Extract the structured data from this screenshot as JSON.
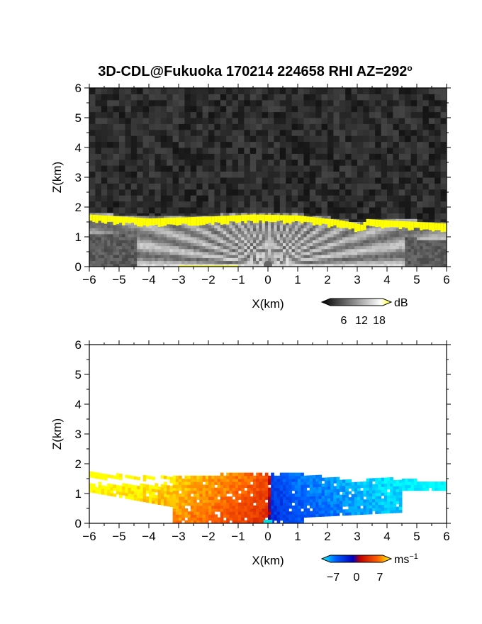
{
  "title": "3D-CDL@Fukuoka 170214 224658 RHI AZ=292",
  "title_sup": "o",
  "chart_data": [
    {
      "type": "heatmap",
      "panel": "backscatter",
      "xlabel": "X(km)",
      "ylabel": "Z(km)",
      "xlim": [
        -6,
        6
      ],
      "ylim": [
        0,
        6
      ],
      "xticks": [
        "-6",
        "-5",
        "-4",
        "-3",
        "-2",
        "-1",
        "0",
        "1",
        "2",
        "3",
        "4",
        "5",
        "6"
      ],
      "yticks": [
        "0",
        "1",
        "2",
        "3",
        "4",
        "5",
        "6"
      ],
      "colorbar": {
        "unit": "dB",
        "ticks": [
          "6",
          "12",
          "18"
        ],
        "range": [
          0,
          20
        ],
        "colors": [
          "#000000",
          "#ffffff",
          "#ffff00"
        ]
      },
      "layer_top_km": [
        {
          "x": -6,
          "z": 1.75
        },
        {
          "x": -4,
          "z": 1.62
        },
        {
          "x": -2,
          "z": 1.68
        },
        {
          "x": -0.5,
          "z": 1.75
        },
        {
          "x": 1,
          "z": 1.72
        },
        {
          "x": 2.5,
          "z": 1.55
        },
        {
          "x": 3.2,
          "z": 1.4
        },
        {
          "x": 3.3,
          "z": 1.6
        },
        {
          "x": 5,
          "z": 1.5
        },
        {
          "x": 6,
          "z": 1.45
        }
      ],
      "colors": {
        "noise": "#2a2a2a",
        "layer": "#ffff00",
        "signal": "#cfcfcf"
      }
    },
    {
      "type": "heatmap",
      "panel": "doppler-velocity",
      "xlabel": "X(km)",
      "ylabel": "Z(km)",
      "xlim": [
        -6,
        6
      ],
      "ylim": [
        0,
        6
      ],
      "xticks": [
        "-6",
        "-5",
        "-4",
        "-3",
        "-2",
        "-1",
        "0",
        "1",
        "2",
        "3",
        "4",
        "5",
        "6"
      ],
      "yticks": [
        "0",
        "1",
        "2",
        "3",
        "4",
        "5",
        "6"
      ],
      "colorbar": {
        "unit": "ms",
        "unit_sup": "−1",
        "ticks": [
          "−7",
          "0",
          "7"
        ],
        "range": [
          -10,
          10
        ],
        "colors": [
          "#00ffff",
          "#0060ff",
          "#0000c0",
          "#c00000",
          "#ff6000",
          "#ffff00"
        ]
      },
      "velocity_profile": [
        {
          "x": -6,
          "v": 9
        },
        {
          "x": -4,
          "v": 8
        },
        {
          "x": -2,
          "v": 6
        },
        {
          "x": -0.5,
          "v": 4
        },
        {
          "x": 0,
          "v": 3
        },
        {
          "x": 0.1,
          "v": -3
        },
        {
          "x": 1,
          "v": -5
        },
        {
          "x": 2,
          "v": -6
        },
        {
          "x": 3,
          "v": -7
        },
        {
          "x": 4,
          "v": -8
        },
        {
          "x": 6,
          "v": -9
        }
      ]
    }
  ]
}
